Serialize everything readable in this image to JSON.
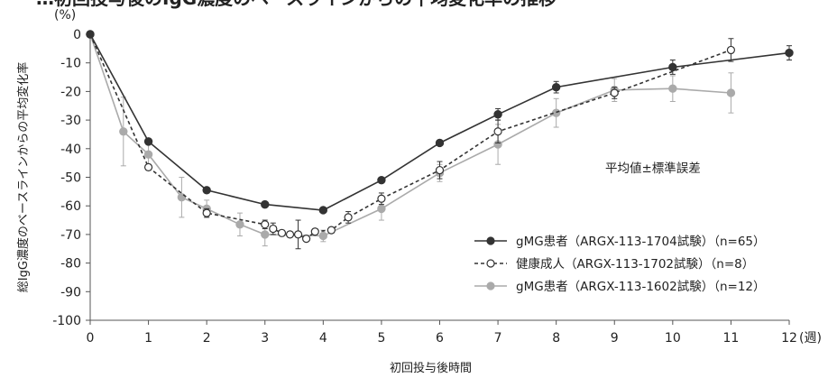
{
  "chart_data": {
    "type": "line",
    "title_partial": "…初回投与後のIgG濃度のベースラインからの平均変化率の推移",
    "y_unit": "(%)",
    "ylabel": "総IgG濃度のベースラインからの平均変化率",
    "xlabel": "初回投与後時間",
    "x_unit": "(週)",
    "xlim": [
      0,
      12
    ],
    "ylim": [
      -100,
      0
    ],
    "x_ticks": [
      0,
      1,
      2,
      3,
      4,
      5,
      6,
      7,
      8,
      9,
      10,
      11,
      12
    ],
    "y_ticks": [
      0,
      -10,
      -20,
      -30,
      -40,
      -50,
      -60,
      -70,
      -80,
      -90,
      -100
    ],
    "note": "平均値±標準誤差",
    "legend_position": "lower-right",
    "series": [
      {
        "name": "gMG患者（ARGX-113-1704試験）（n=65）",
        "color": "#333333",
        "marker": "filled-circle",
        "line_style": "solid",
        "points": [
          {
            "x": 0,
            "y": 0,
            "err": 0
          },
          {
            "x": 1,
            "y": -37.5,
            "err": 0
          },
          {
            "x": 2,
            "y": -54.5,
            "err": 0
          },
          {
            "x": 3,
            "y": -59.5,
            "err": 0
          },
          {
            "x": 4,
            "y": -61.5,
            "err": 0
          },
          {
            "x": 5,
            "y": -51,
            "err": 0
          },
          {
            "x": 6,
            "y": -38,
            "err": 0
          },
          {
            "x": 7,
            "y": -28,
            "err": 2
          },
          {
            "x": 8,
            "y": -18.5,
            "err": 2
          },
          {
            "x": 10,
            "y": -11.5,
            "err": 2.5
          },
          {
            "x": 12,
            "y": -6.5,
            "err": 2.5
          }
        ]
      },
      {
        "name": "健康成人（ARGX-113-1702試験）（n=8）",
        "color": "#333333",
        "marker": "open-circle",
        "line_style": "dashed",
        "points": [
          {
            "x": 0,
            "y": 0,
            "err": 0
          },
          {
            "x": 1,
            "y": -46.5,
            "err": 1
          },
          {
            "x": 2,
            "y": -62.5,
            "err": 1.5
          },
          {
            "x": 3,
            "y": -66.5,
            "err": 1.5
          },
          {
            "x": 3.14,
            "y": -68,
            "err": 2
          },
          {
            "x": 3.29,
            "y": -69.5,
            "err": 0
          },
          {
            "x": 3.43,
            "y": -70,
            "err": 0
          },
          {
            "x": 3.57,
            "y": -70,
            "err": 5
          },
          {
            "x": 3.71,
            "y": -71.5,
            "err": 0
          },
          {
            "x": 3.86,
            "y": -69,
            "err": 1
          },
          {
            "x": 4.14,
            "y": -68.5,
            "err": 1
          },
          {
            "x": 4.43,
            "y": -64,
            "err": 2
          },
          {
            "x": 5,
            "y": -57.5,
            "err": 2
          },
          {
            "x": 6,
            "y": -47.5,
            "err": 3
          },
          {
            "x": 7,
            "y": -34,
            "err": 4
          },
          {
            "x": 9,
            "y": -20.5,
            "err": 2
          },
          {
            "x": 11,
            "y": -5.5,
            "err": 4
          }
        ]
      },
      {
        "name": "gMG患者（ARGX-113-1602試験）（n=12）",
        "color": "#aaaaaa",
        "marker": "filled-circle",
        "line_style": "solid",
        "points": [
          {
            "x": 0,
            "y": 0,
            "err": 0
          },
          {
            "x": 0.57,
            "y": -34,
            "err": 12
          },
          {
            "x": 1,
            "y": -42,
            "err": 5
          },
          {
            "x": 1.57,
            "y": -57,
            "err": 7
          },
          {
            "x": 2,
            "y": -61,
            "err": 3
          },
          {
            "x": 2.57,
            "y": -66.5,
            "err": 4
          },
          {
            "x": 3,
            "y": -70,
            "err": 4
          },
          {
            "x": 4,
            "y": -70.5,
            "err": 2
          },
          {
            "x": 5,
            "y": -61,
            "err": 4
          },
          {
            "x": 6,
            "y": -48.5,
            "err": 3
          },
          {
            "x": 7,
            "y": -38.5,
            "err": 7
          },
          {
            "x": 8,
            "y": -27.5,
            "err": 5
          },
          {
            "x": 9,
            "y": -19.5,
            "err": 4
          },
          {
            "x": 10,
            "y": -19,
            "err": 4.5
          },
          {
            "x": 11,
            "y": -20.5,
            "err": 7
          }
        ]
      }
    ]
  }
}
